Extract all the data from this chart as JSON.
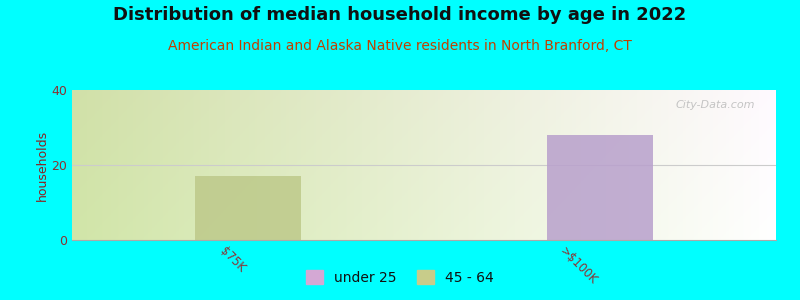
{
  "title": "Distribution of median household income by age in 2022",
  "subtitle": "American Indian and Alaska Native residents in North Branford, CT",
  "ylabel": "households",
  "background_color": "#00FFFF",
  "bars": [
    {
      "x": 1.5,
      "height": 17,
      "color": "#bdc98a",
      "label": "$75K",
      "legend": "45 - 64"
    },
    {
      "x": 4.5,
      "height": 28,
      "color": "#b8a0cc",
      "label": ">$100K",
      "legend": "under 25"
    }
  ],
  "xlim": [
    0,
    6
  ],
  "ylim": [
    0,
    40
  ],
  "yticks": [
    0,
    20,
    40
  ],
  "bar_width": 0.9,
  "title_fontsize": 13,
  "subtitle_fontsize": 10,
  "subtitle_color": "#c04000",
  "ylabel_color": "#8b2222",
  "tick_label_color": "#8b3333",
  "tick_label_rotation": -45,
  "legend_marker_color_under25": "#d4a8d4",
  "legend_marker_color_45_64": "#c8cc8a",
  "watermark": "City-Data.com",
  "grid_color": "#cccccc",
  "grad_top_left": "#d4e8b8",
  "grad_bottom_right": "#f8faf0"
}
